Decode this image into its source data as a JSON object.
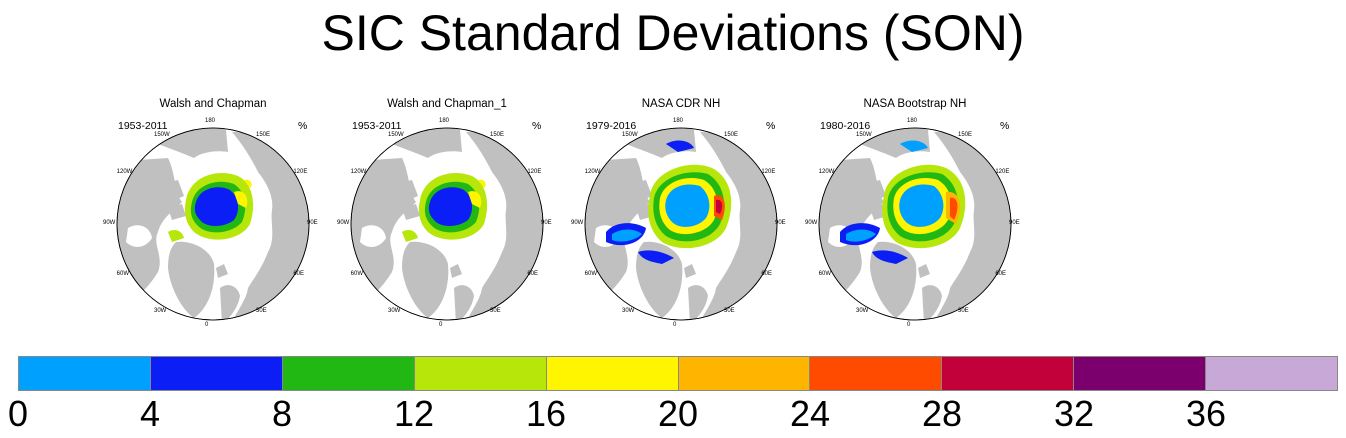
{
  "title": "SIC Standard Deviations (SON)",
  "panels": [
    {
      "title": "Walsh and Chapman",
      "period": "1953-2011",
      "unit": "%"
    },
    {
      "title": "Walsh and Chapman_1",
      "period": "1953-2011",
      "unit": "%"
    },
    {
      "title": "NASA CDR NH",
      "period": "1979-2016",
      "unit": "%"
    },
    {
      "title": "NASA Bootstrap NH",
      "period": "1980-2016",
      "unit": "%"
    }
  ],
  "lon_labels": [
    "180",
    "150E",
    "120E",
    "90E",
    "60E",
    "30E",
    "0",
    "30W",
    "60W",
    "90W",
    "120W",
    "150W"
  ],
  "colorbar": {
    "colors": [
      "#00a0ff",
      "#0a1ef5",
      "#22b814",
      "#b6e60a",
      "#fff500",
      "#ffb400",
      "#ff4b00",
      "#c2003a",
      "#7b006e",
      "#c8a8d6"
    ],
    "ticks": [
      "0",
      "4",
      "8",
      "12",
      "16",
      "20",
      "24",
      "28",
      "32",
      "36"
    ]
  },
  "colors": {
    "land": "#c0c0c0",
    "ocean": "#ffffff"
  }
}
